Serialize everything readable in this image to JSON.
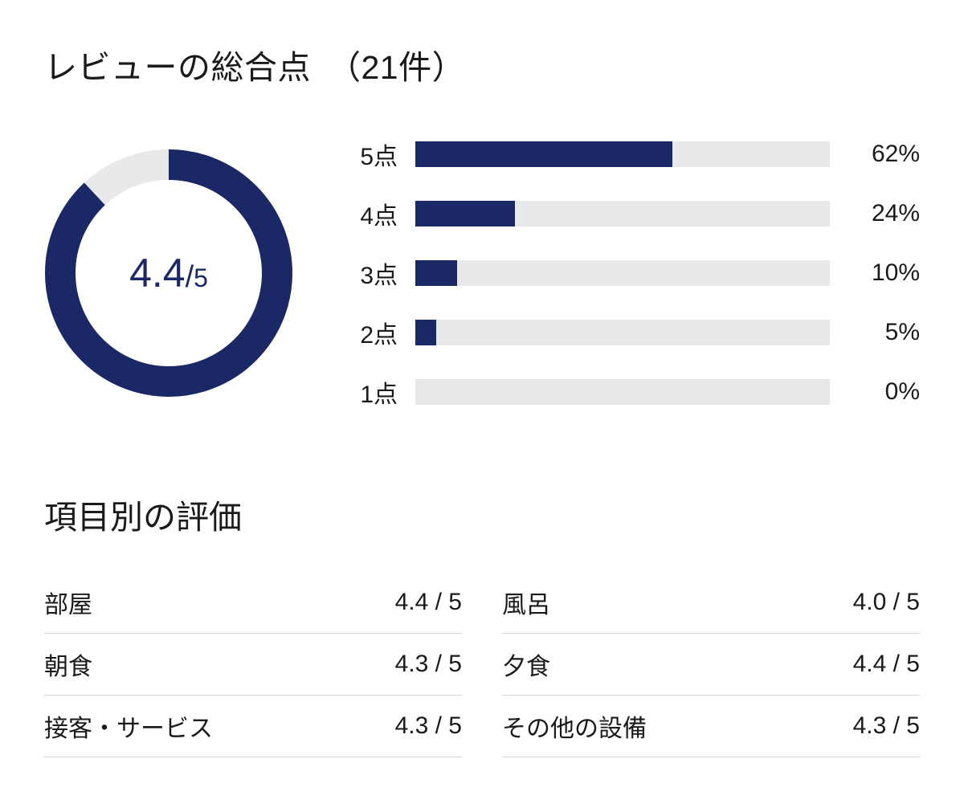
{
  "header": {
    "title": "レビューの総合点　（21件）"
  },
  "donut": {
    "score": "4.4",
    "divider": "/",
    "max": "5",
    "percent": 88,
    "ring_color": "#1b2866",
    "track_color": "#e8e9eb",
    "stroke_width": 38,
    "radius": 135
  },
  "distribution": {
    "bar_color": "#1b2866",
    "track_color": "#e8e9eb",
    "rows": [
      {
        "label": "5点",
        "percent": 62,
        "percent_label": "62%"
      },
      {
        "label": "4点",
        "percent": 24,
        "percent_label": "24%"
      },
      {
        "label": "3点",
        "percent": 10,
        "percent_label": "10%"
      },
      {
        "label": "2点",
        "percent": 5,
        "percent_label": "5%"
      },
      {
        "label": "1点",
        "percent": 0,
        "percent_label": "0%"
      }
    ]
  },
  "categories": {
    "title": "項目別の評価",
    "items": [
      {
        "name": "部屋",
        "score": "4.4 / 5"
      },
      {
        "name": "風呂",
        "score": "4.0 / 5"
      },
      {
        "name": "朝食",
        "score": "4.3 / 5"
      },
      {
        "name": "夕食",
        "score": "4.4 / 5"
      },
      {
        "name": "接客・サービス",
        "score": "4.3 / 5"
      },
      {
        "name": "その他の設備",
        "score": "4.3 / 5"
      }
    ]
  }
}
